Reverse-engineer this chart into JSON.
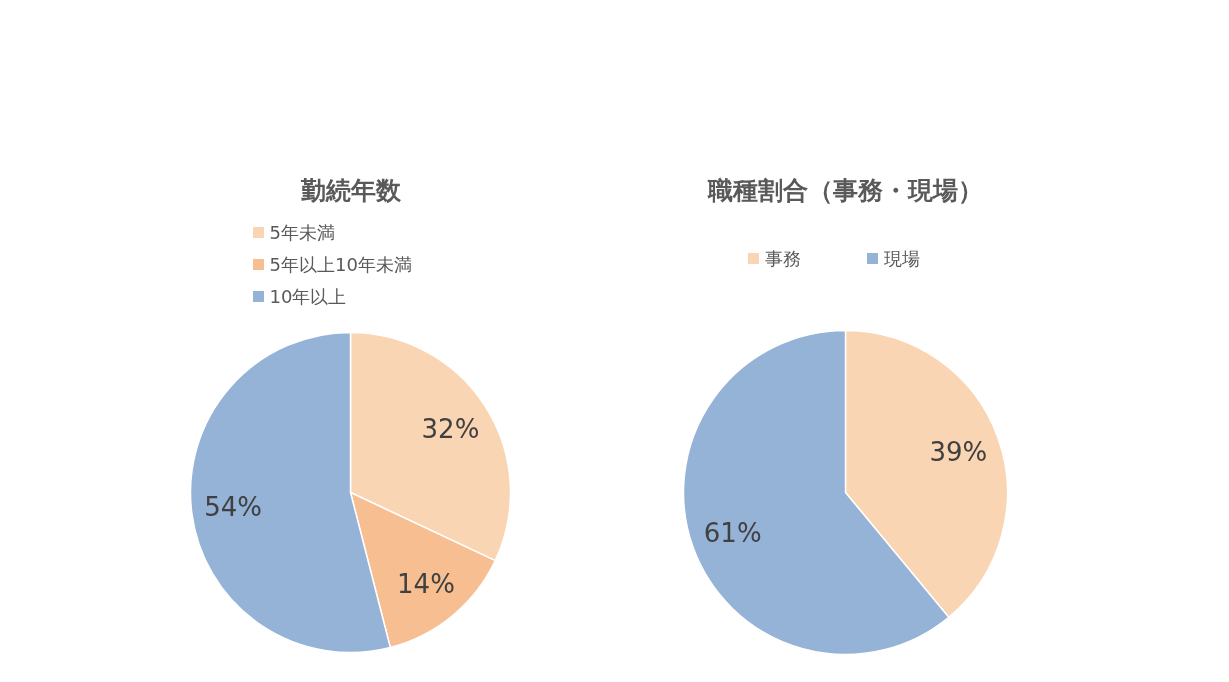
{
  "chart_data": [
    {
      "type": "pie",
      "title": "勤続年数",
      "categories": [
        "5年未満",
        "5年以上10年未満",
        "10年以上"
      ],
      "values": [
        32,
        14,
        54
      ],
      "colors": [
        "#f9d5b3",
        "#f7bf91",
        "#95b3d7"
      ],
      "value_labels": [
        "32%",
        "14%",
        "54%"
      ],
      "legend": "top"
    },
    {
      "type": "pie",
      "title": "職種割合（事務・現場）",
      "categories": [
        "事務",
        "現場"
      ],
      "values": [
        39,
        61
      ],
      "colors": [
        "#f9d5b3",
        "#95b3d7"
      ],
      "value_labels": [
        "39%",
        "61%"
      ],
      "legend": "top"
    }
  ]
}
